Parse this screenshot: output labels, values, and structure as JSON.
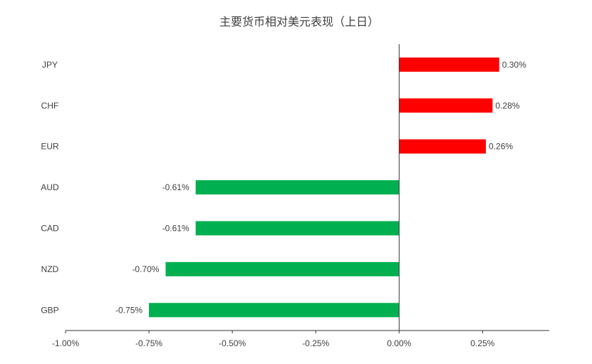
{
  "chart_data": {
    "type": "barh",
    "title": "主要货币相对美元表现（上日）",
    "categories": [
      "JPY",
      "CHF",
      "EUR",
      "AUD",
      "CAD",
      "NZD",
      "GBP"
    ],
    "values": [
      0.3,
      0.28,
      0.26,
      -0.61,
      -0.61,
      -0.7,
      -0.75
    ],
    "value_labels": [
      "0.30%",
      "0.28%",
      "0.26%",
      "-0.61%",
      "-0.61%",
      "-0.70%",
      "-0.75%"
    ],
    "colors": [
      "#ff0000",
      "#ff0000",
      "#ff0000",
      "#00b050",
      "#00b050",
      "#00b050",
      "#00b050"
    ],
    "xlim": [
      -1.0,
      0.45
    ],
    "xticks": [
      {
        "value": -1.0,
        "label": "-1.00%"
      },
      {
        "value": -0.75,
        "label": "-0.75%"
      },
      {
        "value": -0.5,
        "label": "-0.50%"
      },
      {
        "value": -0.25,
        "label": "-0.25%"
      },
      {
        "value": 0,
        "label": "0.00%"
      },
      {
        "value": 0.25,
        "label": "0.25%"
      }
    ],
    "grid": false
  }
}
